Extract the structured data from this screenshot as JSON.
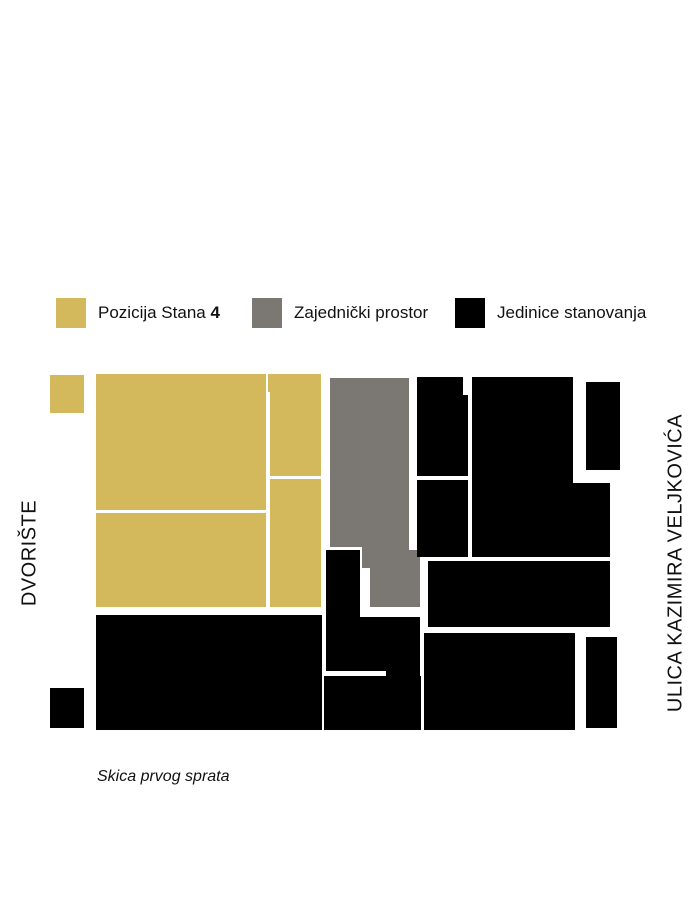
{
  "colors": {
    "apartment_4": "#d4b95c",
    "common_space": "#7b7874",
    "residential_units": "#000000"
  },
  "legend": {
    "apartment_4": {
      "label": "Pozicija Stana ",
      "number": "4"
    },
    "common_space": {
      "label": "Zajednički prostor"
    },
    "residential_units": {
      "label": "Jedinice stanovanja"
    }
  },
  "labels": {
    "left": "DVORIŠTE",
    "right": "ULICA KAZIMIRA VELJKOVIĆA"
  },
  "caption": "Skica prvog sprata"
}
